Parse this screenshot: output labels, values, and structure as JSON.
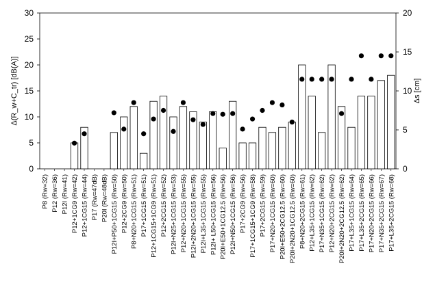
{
  "chart_data": {
    "type": "bar",
    "ylabel_left": "Δ(R_w+C_tr) [dB(A)]",
    "ylabel_right": "Δs [cm]",
    "ylim_left": [
      0,
      30
    ],
    "ylim_right": [
      0,
      20
    ],
    "yticks_left": [
      "0",
      "5",
      "10",
      "15",
      "20",
      "25",
      "30"
    ],
    "yticks_right": [
      "0",
      "5",
      "10",
      "15",
      "20"
    ],
    "grid": false,
    "categories": [
      "P8 (Rw=32)",
      "P12 (Rw=36)",
      "P12I (Rw=41)",
      "P12+1CG9 (Rw=42)",
      "P12+1CG15 (Rw=44)",
      "P17 (Rw=47dB)",
      "P20I (Rw=48dB)",
      "P12I+P50+1CG15 (Rw=50)",
      "P12+2CG9 (Rw=50)",
      "P8+N20+1CG15 (Rw=51)",
      "P17+1CG15 (Rw=51)",
      "P12+1CG15+1CG9 (Rw=51)",
      "P12+2CG15 (Rw=52)",
      "P12I+N25+1CG15 (Rw=53)",
      "P12+N20+1CG15 (Rw=55)",
      "P12I+2N20+1CG15 (Rw=55)",
      "P12I+L35+1CG15 (Rw=55)",
      "P12I+ L50+1CG15 (Rw=56)",
      "P20I+E50+1CG12.5 (Rw=56)",
      "P12I+N50+1CG15 (Rw=56)",
      "P17+2CG9 (Rw=56)",
      "P17+1CG15+1CG9 (Rw=58)",
      "P17+2CG15 (Rw=59)",
      "P17+N20+1CG15 (Rw=60)",
      "P20I+E50+2CG12.5 (Rw=60)",
      "P20I+2N20+1CG12.5 (Rw=60)",
      "P8+N20+2CG15 (Rw=61)",
      "P12+L35+1CG15 (Rw=62)",
      "P17+N35+1CG15 (Rw=62)",
      "P12+N20+2CG15 (Rw=62)",
      "P20I+2N20+2CG12.5 (Rw=62)",
      "P17+L35+1CG15 (Rw=64)",
      "P17+L35+2CG15 (Rw=65)",
      "P17+N20+2CG15 (Rw=66)",
      "P17+N35+2CG15 (Rw=67)",
      "P17+L35+2CG15 (Rw=68)"
    ],
    "series": [
      {
        "kind": "bar",
        "axis": "left",
        "values": [
          0,
          0,
          0,
          5,
          8,
          0,
          0,
          7,
          10,
          12,
          3,
          13,
          14,
          10,
          12,
          11,
          9,
          11,
          4,
          13,
          5,
          5,
          8,
          7,
          8,
          9,
          20,
          14,
          7,
          20,
          12,
          8,
          14,
          14,
          17,
          18
        ]
      },
      {
        "kind": "dot",
        "axis": "right",
        "values": [
          null,
          null,
          null,
          3.3,
          4.5,
          null,
          null,
          7.2,
          5.1,
          8.5,
          4.5,
          6.4,
          7.5,
          4.8,
          8.5,
          6.3,
          5.7,
          7.1,
          7.0,
          7.1,
          5.1,
          6.4,
          7.5,
          8.5,
          8.2,
          6.0,
          11.5,
          11.5,
          11.5,
          11.5,
          7.1,
          11.5,
          14.5,
          11.5,
          14.5,
          14.5
        ]
      }
    ]
  }
}
